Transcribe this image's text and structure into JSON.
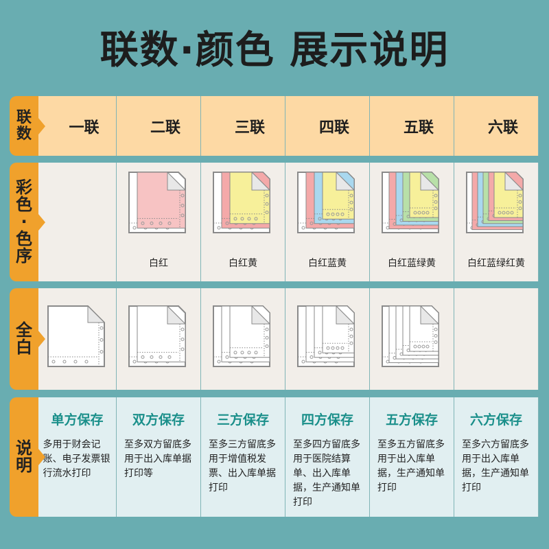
{
  "title": "联数·颜色 展示说明",
  "labels": {
    "count": "联数",
    "color": "彩色·色序",
    "white": "全白",
    "desc": "说明"
  },
  "columns": [
    {
      "name": "一联",
      "sheets": 1,
      "color_order": "",
      "color_hex": [],
      "title": "单方保存",
      "desc": "多用于财会记账、电子发票银行流水打印"
    },
    {
      "name": "二联",
      "sheets": 2,
      "color_order": "白红",
      "color_hex": [
        "#ffffff",
        "#f7c3c3"
      ],
      "title": "双方保存",
      "desc": "至多双方留底多用于出入库单据打印等"
    },
    {
      "name": "三联",
      "sheets": 3,
      "color_order": "白红黄",
      "color_hex": [
        "#ffffff",
        "#f4a9a9",
        "#f7f09a"
      ],
      "title": "三方保存",
      "desc": "至多三方留底多用于增值税发票、出入库单据打印"
    },
    {
      "name": "四联",
      "sheets": 4,
      "color_order": "白红蓝黄",
      "color_hex": [
        "#ffffff",
        "#f4a9a9",
        "#a9d8ef",
        "#f7f09a"
      ],
      "title": "四方保存",
      "desc": "至多四方留底多用于医院结算单、出入库单据，生产通知单打印"
    },
    {
      "name": "五联",
      "sheets": 5,
      "color_order": "白红蓝绿黄",
      "color_hex": [
        "#ffffff",
        "#f4a9a9",
        "#a9d8ef",
        "#b8e0a8",
        "#f7f09a"
      ],
      "title": "五方保存",
      "desc": "至多五方留底多用于出入库单据，生产通知单打印"
    },
    {
      "name": "六联",
      "sheets": 6,
      "color_order": "白红蓝绿红黄",
      "color_hex": [
        "#ffffff",
        "#f4a9a9",
        "#a9d8ef",
        "#b8e0a8",
        "#f4a9a9",
        "#f7f09a"
      ],
      "title": "六方保存",
      "desc": "至多六方留底多用于出入库单据，生产通知单打印"
    }
  ]
}
